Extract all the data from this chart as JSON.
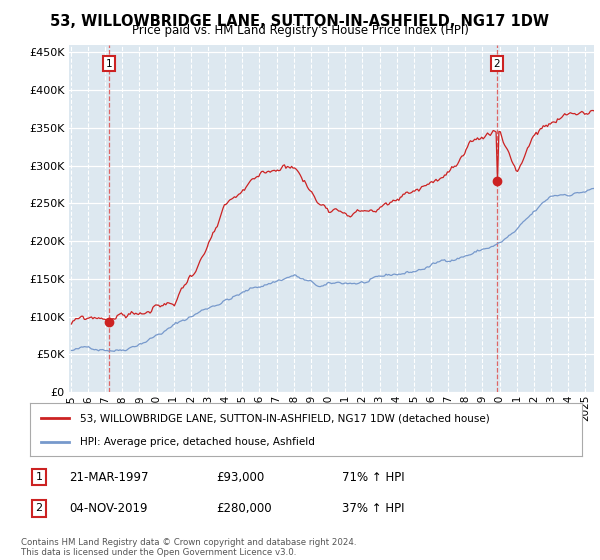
{
  "title": "53, WILLOWBRIDGE LANE, SUTTON-IN-ASHFIELD, NG17 1DW",
  "subtitle": "Price paid vs. HM Land Registry's House Price Index (HPI)",
  "legend_line1": "53, WILLOWBRIDGE LANE, SUTTON-IN-ASHFIELD, NG17 1DW (detached house)",
  "legend_line2": "HPI: Average price, detached house, Ashfield",
  "sale1_date": "21-MAR-1997",
  "sale1_price": 93000,
  "sale1_pct": "71% ↑ HPI",
  "sale2_date": "04-NOV-2019",
  "sale2_price": 280000,
  "sale2_pct": "37% ↑ HPI",
  "sale1_x": 1997.21,
  "sale2_x": 2019.84,
  "hpi_color": "#7799cc",
  "price_color": "#cc2222",
  "marker_color": "#cc2222",
  "vline_color": "#dd6666",
  "background_color": "#dde8f0",
  "plot_bg_color": "#dde8f0",
  "grid_color": "#ffffff",
  "footnote": "Contains HM Land Registry data © Crown copyright and database right 2024.\nThis data is licensed under the Open Government Licence v3.0.",
  "ylim": [
    0,
    460000
  ],
  "yticks": [
    0,
    50000,
    100000,
    150000,
    200000,
    250000,
    300000,
    350000,
    400000,
    450000
  ],
  "xlim_left": 1994.9,
  "xlim_right": 2025.5
}
